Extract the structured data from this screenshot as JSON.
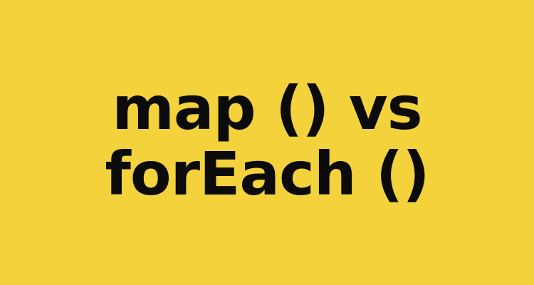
{
  "banner": {
    "background_color": "#F4D23B",
    "text_color": "#0B0B0B",
    "title_line_1": "map () vs",
    "title_line_2": "forEach ()"
  }
}
